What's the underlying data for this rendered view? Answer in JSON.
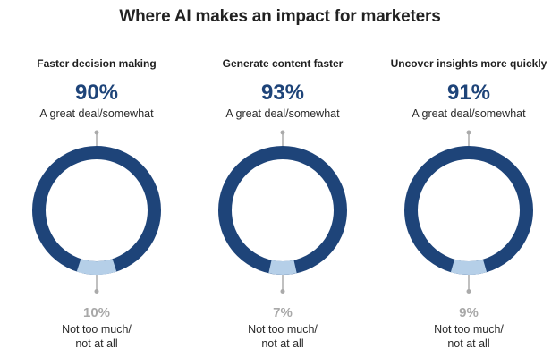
{
  "title": "Where AI makes an impact for marketers",
  "colors": {
    "primary": "#1e4479",
    "secondary": "#b5cfe8",
    "leader": "#aaaaaa",
    "minor_text": "#a8a8a8"
  },
  "panels": [
    {
      "label": "Faster decision making",
      "major_pct": "90%",
      "major_label": "A great deal/somewhat",
      "minor_pct": "10%",
      "minor_label_1": "Not too much/",
      "minor_label_2": "not at all"
    },
    {
      "label": "Generate content faster",
      "major_pct": "93%",
      "major_label": "A great deal/somewhat",
      "minor_pct": "7%",
      "minor_label_1": "Not too much/",
      "minor_label_2": "not at all"
    },
    {
      "label": "Uncover insights more quickly",
      "major_pct": "91%",
      "major_label": "A great deal/somewhat",
      "minor_pct": "9%",
      "minor_label_1": "Not too much/",
      "minor_label_2": "not at all"
    }
  ],
  "chart_data": [
    {
      "type": "pie",
      "title": "Faster decision making",
      "categories": [
        "A great deal/somewhat",
        "Not too much/not at all"
      ],
      "values": [
        90,
        10
      ]
    },
    {
      "type": "pie",
      "title": "Generate content faster",
      "categories": [
        "A great deal/somewhat",
        "Not too much/not at all"
      ],
      "values": [
        93,
        7
      ]
    },
    {
      "type": "pie",
      "title": "Uncover insights more quickly",
      "categories": [
        "A great deal/somewhat",
        "Not too much/not at all"
      ],
      "values": [
        91,
        9
      ]
    }
  ]
}
